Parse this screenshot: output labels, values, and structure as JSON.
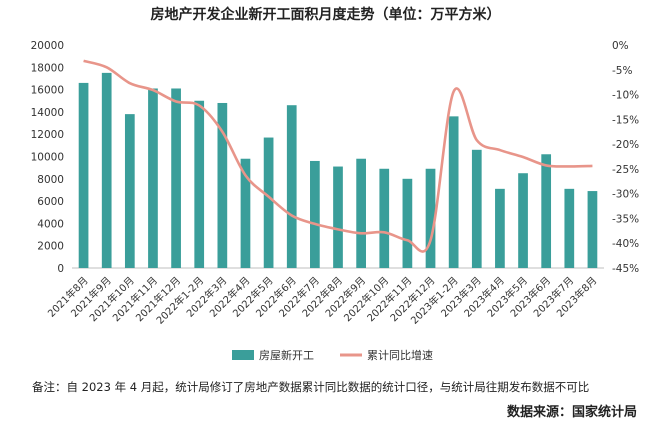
{
  "title": "房地产开发企业新开工面积月度走势（单位：万平方米）",
  "note": "备注：自 2023 年 4 月起，统计局修订了房地产数据累计同比数据的统计口径，与统计局往期发布数据不可比",
  "source": "数据来源：国家统计局",
  "colors": {
    "bar": "#3a9e9a",
    "line": "#e8958a",
    "axis": "#bfbfbf",
    "text": "#333333"
  },
  "chart_data": {
    "type": "bar",
    "title": "房地产开发企业新开工面积月度走势（单位：万平方米）",
    "categories": [
      "2021年8月",
      "2021年9月",
      "2021年10月",
      "2021年11月",
      "2021年12月",
      "2022年1-2月",
      "2022年3月",
      "2022年4月",
      "2022年5月",
      "2022年6月",
      "2022年7月",
      "2022年8月",
      "2022年9月",
      "2022年10月",
      "2022年11月",
      "2022年12月",
      "2023年1-2月",
      "2023年3月",
      "2023年4月",
      "2023年5月",
      "2023年6月",
      "2023年7月",
      "2023年8月"
    ],
    "series": [
      {
        "name": "房屋新开工",
        "type": "bar",
        "axis": "left",
        "values": [
          16600,
          17500,
          13800,
          16100,
          16100,
          15000,
          14800,
          9800,
          11700,
          14600,
          9600,
          9100,
          9800,
          8900,
          8000,
          8900,
          13600,
          10600,
          7100,
          8500,
          10200,
          7100,
          6900
        ]
      },
      {
        "name": "累计同比增速",
        "type": "line",
        "axis": "right",
        "values": [
          -3.2,
          -4.5,
          -7.7,
          -9.1,
          -11.4,
          -12.2,
          -17.5,
          -26.3,
          -30.6,
          -34.4,
          -36.1,
          -37.2,
          -38.0,
          -37.8,
          -39.4,
          -39.4,
          -9.4,
          -19.2,
          -21.2,
          -22.6,
          -24.3,
          -24.5,
          -24.4
        ]
      }
    ],
    "y_left": {
      "min": 0,
      "max": 20000,
      "ticks": [
        "0",
        "2000",
        "4000",
        "6000",
        "8000",
        "10000",
        "12000",
        "14000",
        "16000",
        "18000",
        "20000"
      ]
    },
    "y_right": {
      "min": -45,
      "max": 0,
      "ticks": [
        "0%",
        "-5%",
        "-10%",
        "-15%",
        "-20%",
        "-25%",
        "-30%",
        "-35%",
        "-40%",
        "-45%"
      ]
    },
    "legend": {
      "position": "bottom"
    },
    "grid": false
  }
}
